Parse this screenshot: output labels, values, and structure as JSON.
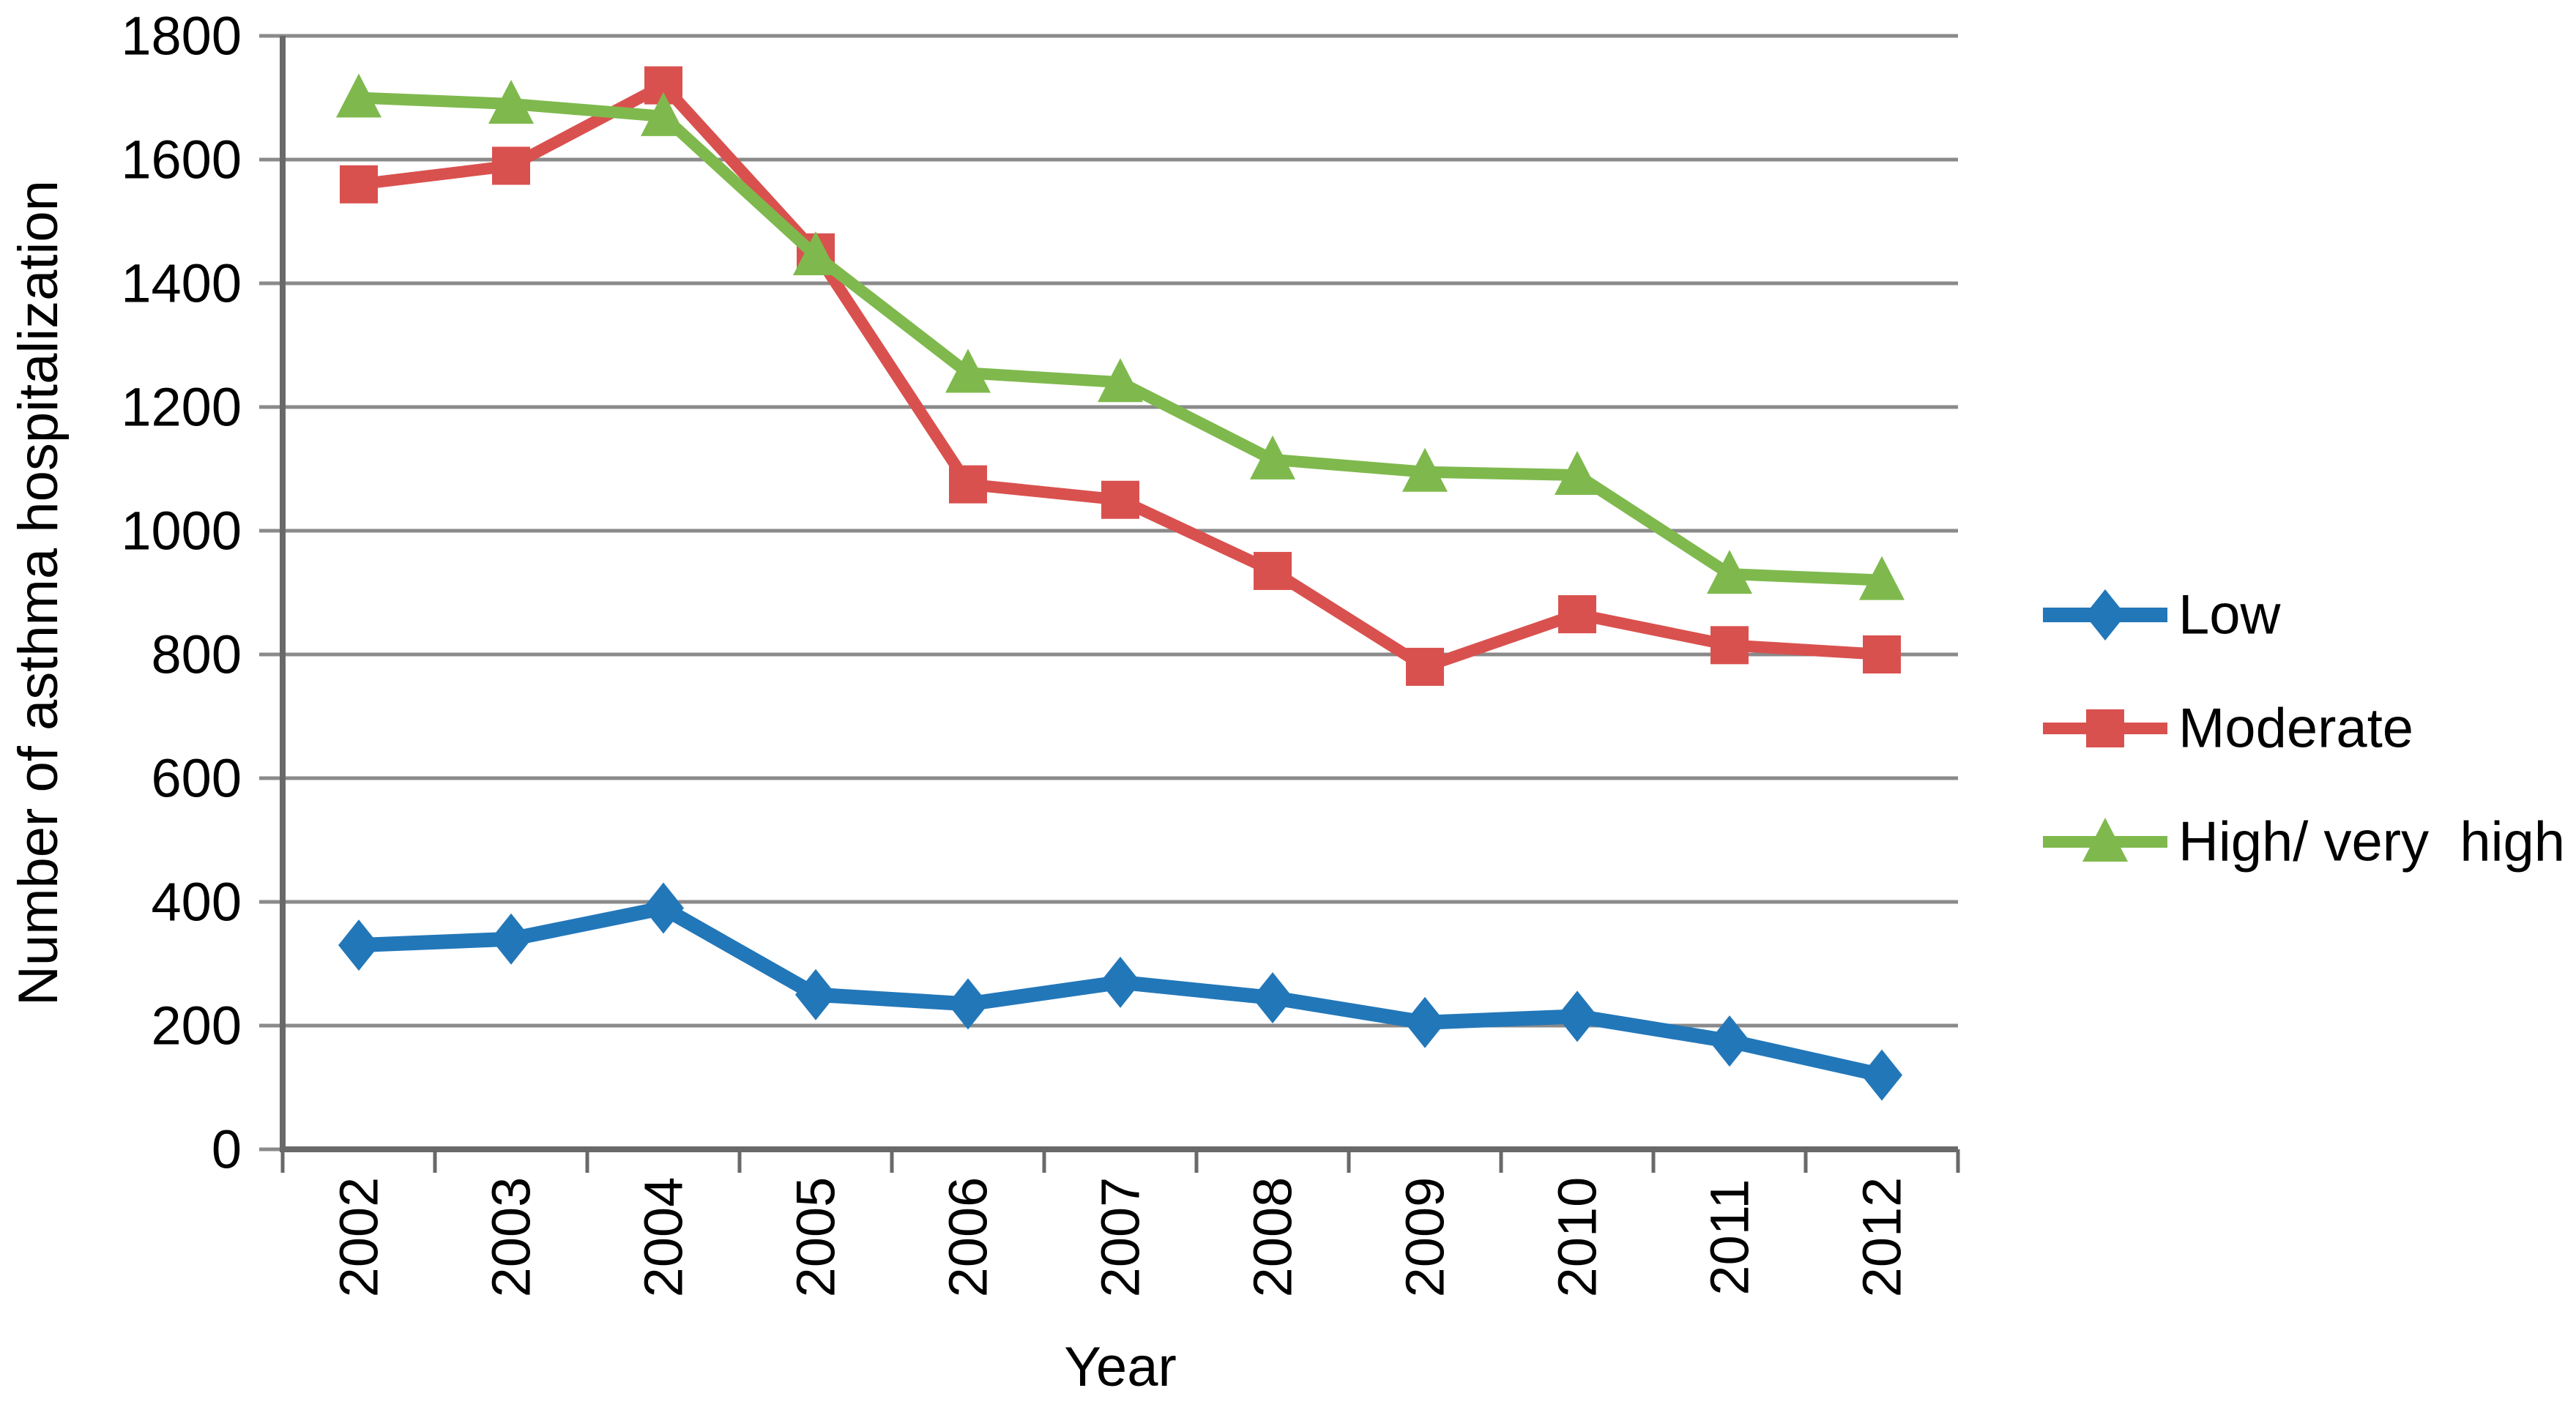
{
  "chart_data": {
    "type": "line",
    "title": "",
    "xlabel": "Year",
    "ylabel": "Number of asthma hospitalization",
    "categories": [
      "2002",
      "2003",
      "2004",
      "2005",
      "2006",
      "2007",
      "2008",
      "2009",
      "2010",
      "2011",
      "2012"
    ],
    "series": [
      {
        "name": "Low",
        "marker": "diamond",
        "color": "#2277B9",
        "values": [
          330,
          340,
          390,
          250,
          235,
          270,
          245,
          205,
          215,
          175,
          120
        ]
      },
      {
        "name": "Moderate",
        "marker": "square",
        "color": "#D9514E",
        "values": [
          1560,
          1590,
          1720,
          1450,
          1075,
          1050,
          935,
          780,
          865,
          815,
          800
        ]
      },
      {
        "name": "High/ very  high",
        "marker": "triangle",
        "color": "#7FB94D",
        "values": [
          1700,
          1690,
          1670,
          1445,
          1255,
          1240,
          1115,
          1095,
          1090,
          930,
          920
        ]
      }
    ],
    "ylim": [
      0,
      1800
    ],
    "ytick_step": 200,
    "yticks": [
      "0",
      "200",
      "400",
      "600",
      "800",
      "1000",
      "1200",
      "1400",
      "1600",
      "1800"
    ],
    "grid": "horizontal",
    "legend_position": "right"
  },
  "style": {
    "background": "#FFFFFF",
    "axis_color": "#696969",
    "grid_color": "#8A8A8A",
    "text_color": "#000000"
  }
}
